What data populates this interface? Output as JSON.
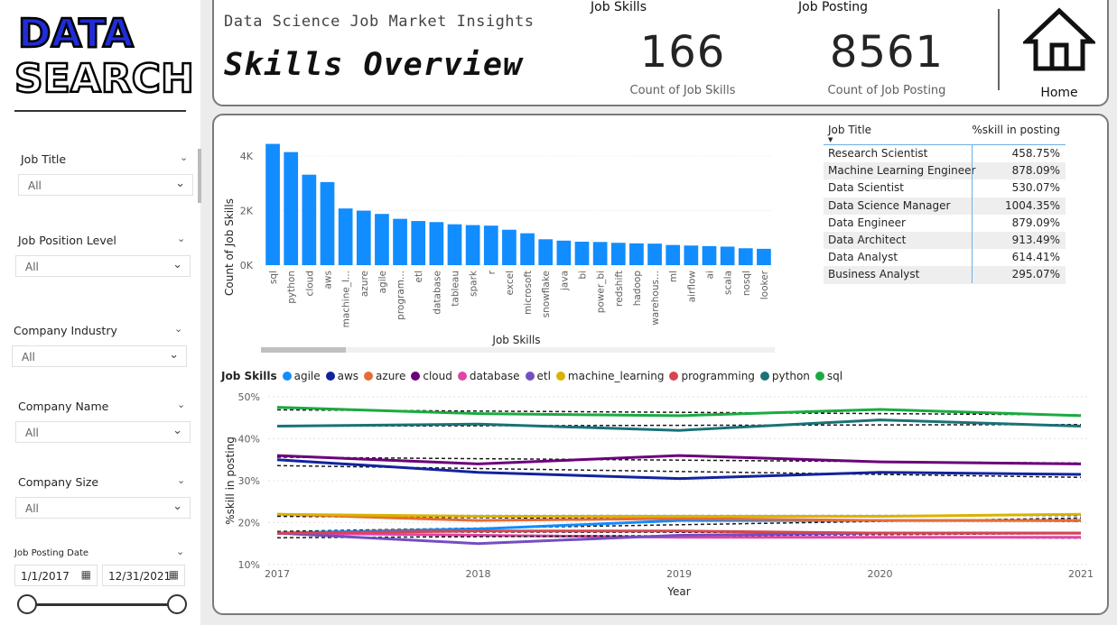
{
  "logo": {
    "line1": "DATA",
    "line2": "SEARCH"
  },
  "header": {
    "subtitle": "Data Science Job Market Insights",
    "title": "Skills Overview"
  },
  "kpis": [
    {
      "label": "Job Skills",
      "value": "166",
      "caption": "Count of Job Skills"
    },
    {
      "label": "Job Posting",
      "value": "8561",
      "caption": "Count of Job Posting"
    }
  ],
  "home": {
    "label": "Home",
    "icon": "home-icon"
  },
  "filters": [
    {
      "title": "Job Title",
      "value": "All"
    },
    {
      "title": "Job Position Level",
      "value": "All"
    },
    {
      "title": "Company Industry",
      "value": "All"
    },
    {
      "title": "Company Name",
      "value": "All"
    },
    {
      "title": "Company Size",
      "value": "All"
    }
  ],
  "date_filter": {
    "title": "Job Posting Date",
    "start": "1/1/2017",
    "end": "12/31/2021"
  },
  "table": {
    "columns": [
      "Job Title",
      "%skill in posting"
    ],
    "rows": [
      [
        "Research Scientist",
        "458.75%"
      ],
      [
        "Machine Learning Engineer",
        "878.09%"
      ],
      [
        "Data Scientist",
        "530.07%"
      ],
      [
        "Data Science Manager",
        "1004.35%"
      ],
      [
        "Data Engineer",
        "879.09%"
      ],
      [
        "Data Architect",
        "913.49%"
      ],
      [
        "Data Analyst",
        "614.41%"
      ],
      [
        "Business Analyst",
        "295.07%"
      ]
    ]
  },
  "chart_data": [
    {
      "type": "bar",
      "xlabel": "Job Skills",
      "ylabel": "Count of Job Skills",
      "yticks": [
        "0K",
        "2K",
        "4K"
      ],
      "ylim": [
        0,
        4700
      ],
      "color": "#118dff",
      "categories": [
        "sql",
        "python",
        "cloud",
        "aws",
        "machine_l...",
        "azure",
        "agile",
        "program...",
        "etl",
        "database",
        "tableau",
        "spark",
        "r",
        "excel",
        "microsoft",
        "snowflake",
        "java",
        "bi",
        "power_bi",
        "redshift",
        "hadoop",
        "warehous...",
        "ml",
        "airflow",
        "ai",
        "scala",
        "nosql",
        "looker"
      ],
      "values": [
        4450,
        4150,
        3320,
        3050,
        2080,
        2000,
        1880,
        1700,
        1620,
        1580,
        1500,
        1470,
        1450,
        1300,
        1170,
        950,
        900,
        860,
        850,
        820,
        800,
        790,
        740,
        720,
        700,
        680,
        620,
        600
      ]
    },
    {
      "type": "line",
      "legend_title": "Job Skills",
      "xlabel": "Year",
      "ylabel": "%skill in posting",
      "x": [
        "2017",
        "2018",
        "2019",
        "2020",
        "2021"
      ],
      "yticks": [
        "10%",
        "20%",
        "30%",
        "40%",
        "50%"
      ],
      "ylim": [
        10,
        50
      ],
      "trendlines": true,
      "series": [
        {
          "name": "agile",
          "color": "#118dff",
          "values": [
            17.5,
            18.5,
            20.5,
            20.5,
            20.5
          ]
        },
        {
          "name": "aws",
          "color": "#12239e",
          "values": [
            35.0,
            32.0,
            30.5,
            32.0,
            31.5
          ]
        },
        {
          "name": "azure",
          "color": "#e66c37",
          "values": [
            22.0,
            20.5,
            21.0,
            20.5,
            20.5
          ]
        },
        {
          "name": "cloud",
          "color": "#6b007b",
          "values": [
            36.0,
            34.0,
            36.0,
            34.5,
            34.0
          ]
        },
        {
          "name": "database",
          "color": "#e044a7",
          "values": [
            17.5,
            17.0,
            16.5,
            16.5,
            16.5
          ]
        },
        {
          "name": "etl",
          "color": "#744ec2",
          "values": [
            17.5,
            15.0,
            17.0,
            17.5,
            17.5
          ]
        },
        {
          "name": "machine_learning",
          "color": "#d9b300",
          "values": [
            22.0,
            21.5,
            21.5,
            21.5,
            22.0
          ]
        },
        {
          "name": "programming",
          "color": "#d64550",
          "values": [
            17.5,
            18.0,
            18.0,
            17.5,
            17.5
          ]
        },
        {
          "name": "python",
          "color": "#197278",
          "values": [
            43.0,
            43.5,
            42.0,
            44.5,
            43.0
          ]
        },
        {
          "name": "sql",
          "color": "#1aab40",
          "values": [
            47.5,
            46.0,
            45.5,
            47.0,
            45.5
          ]
        }
      ]
    }
  ]
}
